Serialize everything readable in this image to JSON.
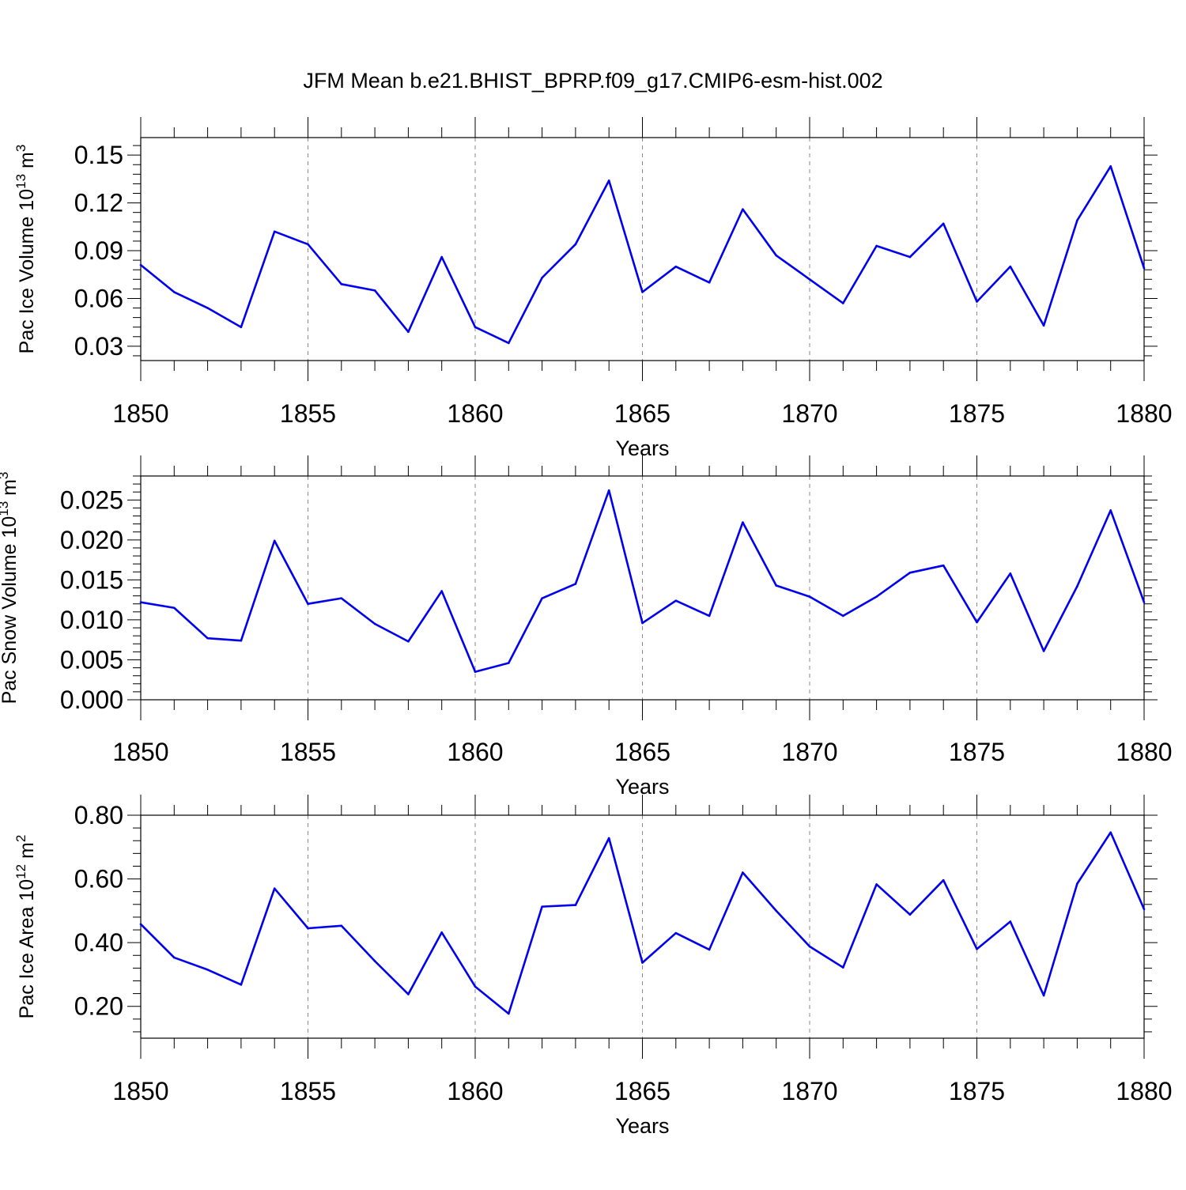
{
  "figure": {
    "title": "JFM Mean b.e21.BHIST_BPRP.f09_g17.CMIP6-esm-hist.002",
    "line_color": "#0000ee",
    "grid_color": "#888888"
  },
  "chart_data": [
    {
      "type": "line",
      "title": "",
      "xlabel": "Years",
      "ylabel": {
        "main": "Pac Ice Volume 10",
        "sup": "13",
        "unit": " m",
        "unit_sup": "3"
      },
      "x": [
        1850,
        1851,
        1852,
        1853,
        1854,
        1855,
        1856,
        1857,
        1858,
        1859,
        1860,
        1861,
        1862,
        1863,
        1864,
        1865,
        1866,
        1867,
        1868,
        1869,
        1870,
        1871,
        1872,
        1873,
        1874,
        1875,
        1876,
        1877,
        1878,
        1879,
        1880
      ],
      "series": [
        {
          "values": [
            0.081,
            0.064,
            0.054,
            0.042,
            0.102,
            0.094,
            0.069,
            0.065,
            0.039,
            0.086,
            0.042,
            0.032,
            0.073,
            0.094,
            0.134,
            0.064,
            0.08,
            0.07,
            0.116,
            0.087,
            0.072,
            0.057,
            0.093,
            0.086,
            0.107,
            0.058,
            0.08,
            0.043,
            0.109,
            0.143,
            0.079
          ]
        }
      ],
      "xlim": [
        1850,
        1880
      ],
      "ylim": [
        0.021,
        0.161
      ],
      "yticks": [
        "0.03",
        "0.06",
        "0.09",
        "0.12",
        "0.15"
      ],
      "xticks": [
        "1850",
        "1855",
        "1860",
        "1865",
        "1870",
        "1875",
        "1880"
      ],
      "grid": "vertical dashed at major x ticks"
    },
    {
      "type": "line",
      "title": "",
      "xlabel": "Years",
      "ylabel": {
        "main": "Pac Snow Volume 10",
        "sup": "13",
        "unit": " m",
        "unit_sup": "3"
      },
      "x": [
        1850,
        1851,
        1852,
        1853,
        1854,
        1855,
        1856,
        1857,
        1858,
        1859,
        1860,
        1861,
        1862,
        1863,
        1864,
        1865,
        1866,
        1867,
        1868,
        1869,
        1870,
        1871,
        1872,
        1873,
        1874,
        1875,
        1876,
        1877,
        1878,
        1879,
        1880
      ],
      "series": [
        {
          "values": [
            0.0122,
            0.0115,
            0.0077,
            0.0074,
            0.0199,
            0.012,
            0.0127,
            0.0095,
            0.0073,
            0.0136,
            0.0035,
            0.0046,
            0.0127,
            0.0145,
            0.0262,
            0.0096,
            0.0124,
            0.0105,
            0.0222,
            0.0143,
            0.0129,
            0.0105,
            0.0129,
            0.0159,
            0.0168,
            0.0097,
            0.0158,
            0.0061,
            0.0142,
            0.0237,
            0.0122
          ]
        }
      ],
      "xlim": [
        1850,
        1880
      ],
      "ylim": [
        0.0,
        0.028
      ],
      "yticks": [
        "0.000",
        "0.005",
        "0.010",
        "0.015",
        "0.020",
        "0.025"
      ],
      "xticks": [
        "1850",
        "1855",
        "1860",
        "1865",
        "1870",
        "1875",
        "1880"
      ],
      "grid": "vertical dashed at major x ticks"
    },
    {
      "type": "line",
      "title": "",
      "xlabel": "Years",
      "ylabel": {
        "main": "Pac Ice Area 10",
        "sup": "12",
        "unit": " m",
        "unit_sup": "2"
      },
      "x": [
        1850,
        1851,
        1852,
        1853,
        1854,
        1855,
        1856,
        1857,
        1858,
        1859,
        1860,
        1861,
        1862,
        1863,
        1864,
        1865,
        1866,
        1867,
        1868,
        1869,
        1870,
        1871,
        1872,
        1873,
        1874,
        1875,
        1876,
        1877,
        1878,
        1879,
        1880
      ],
      "series": [
        {
          "values": [
            0.458,
            0.353,
            0.315,
            0.268,
            0.57,
            0.445,
            0.453,
            0.342,
            0.238,
            0.432,
            0.262,
            0.177,
            0.513,
            0.518,
            0.728,
            0.337,
            0.43,
            0.378,
            0.62,
            0.5,
            0.388,
            0.322,
            0.583,
            0.488,
            0.596,
            0.38,
            0.466,
            0.234,
            0.585,
            0.746,
            0.505
          ]
        }
      ],
      "xlim": [
        1850,
        1880
      ],
      "ylim": [
        0.1,
        0.8
      ],
      "yticks": [
        "0.20",
        "0.40",
        "0.60",
        "0.80"
      ],
      "xticks": [
        "1850",
        "1855",
        "1860",
        "1865",
        "1870",
        "1875",
        "1880"
      ],
      "grid": "vertical dashed at major x ticks"
    }
  ]
}
